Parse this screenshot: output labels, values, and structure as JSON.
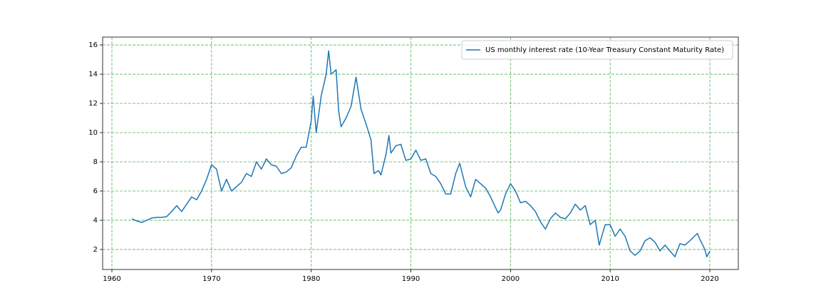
{
  "chart_data": {
    "type": "line",
    "x": [
      1962.0,
      1962.5,
      1963.0,
      1963.5,
      1964.0,
      1964.5,
      1965.0,
      1965.5,
      1966.0,
      1966.5,
      1967.0,
      1967.5,
      1968.0,
      1968.5,
      1969.0,
      1969.5,
      1970.0,
      1970.5,
      1971.0,
      1971.5,
      1972.0,
      1972.5,
      1973.0,
      1973.5,
      1974.0,
      1974.5,
      1975.0,
      1975.5,
      1976.0,
      1976.5,
      1977.0,
      1977.5,
      1978.0,
      1978.5,
      1979.0,
      1979.5,
      1980.0,
      1980.2,
      1980.5,
      1981.0,
      1981.5,
      1981.75,
      1982.0,
      1982.5,
      1982.75,
      1983.0,
      1983.5,
      1984.0,
      1984.5,
      1985.0,
      1985.5,
      1986.0,
      1986.3,
      1986.75,
      1987.0,
      1987.5,
      1987.8,
      1988.0,
      1988.5,
      1989.0,
      1989.5,
      1990.0,
      1990.5,
      1991.0,
      1991.5,
      1992.0,
      1992.5,
      1993.0,
      1993.5,
      1994.0,
      1994.5,
      1994.9,
      1995.5,
      1996.0,
      1996.5,
      1997.0,
      1997.5,
      1998.0,
      1998.75,
      1999.0,
      1999.5,
      2000.0,
      2000.5,
      2001.0,
      2001.5,
      2002.0,
      2002.5,
      2003.0,
      2003.5,
      2004.0,
      2004.5,
      2005.0,
      2005.5,
      2006.0,
      2006.5,
      2007.0,
      2007.5,
      2008.0,
      2008.5,
      2008.9,
      2009.5,
      2010.0,
      2010.5,
      2011.0,
      2011.5,
      2012.0,
      2012.5,
      2013.0,
      2013.5,
      2014.0,
      2014.5,
      2015.0,
      2015.5,
      2016.0,
      2016.5,
      2017.0,
      2017.5,
      2018.0,
      2018.75,
      2019.0,
      2019.5,
      2019.7,
      2020.0
    ],
    "series": [
      {
        "name": "US monthly interest rate (10-Year Treasury Constant Maturity Rate)",
        "color": "#1f77b4",
        "values": [
          4.1,
          3.95,
          3.85,
          4.0,
          4.15,
          4.2,
          4.2,
          4.25,
          4.6,
          5.0,
          4.6,
          5.1,
          5.6,
          5.4,
          6.0,
          6.8,
          7.8,
          7.5,
          6.0,
          6.8,
          6.0,
          6.3,
          6.6,
          7.2,
          7.0,
          8.0,
          7.5,
          8.2,
          7.8,
          7.7,
          7.2,
          7.3,
          7.6,
          8.4,
          9.0,
          9.0,
          10.8,
          12.5,
          10.0,
          12.5,
          14.0,
          15.6,
          14.0,
          14.3,
          11.5,
          10.4,
          11.0,
          11.8,
          13.8,
          11.6,
          10.6,
          9.5,
          7.2,
          7.4,
          7.1,
          8.5,
          9.8,
          8.6,
          9.1,
          9.2,
          8.1,
          8.2,
          8.8,
          8.1,
          8.2,
          7.2,
          7.0,
          6.5,
          5.8,
          5.8,
          7.2,
          7.9,
          6.3,
          5.6,
          6.8,
          6.5,
          6.2,
          5.6,
          4.5,
          4.7,
          5.8,
          6.5,
          6.0,
          5.2,
          5.3,
          5.0,
          4.6,
          3.9,
          3.4,
          4.1,
          4.5,
          4.2,
          4.1,
          4.5,
          5.1,
          4.7,
          5.0,
          3.7,
          4.0,
          2.3,
          3.7,
          3.7,
          2.9,
          3.4,
          2.9,
          1.9,
          1.6,
          1.9,
          2.6,
          2.8,
          2.5,
          1.9,
          2.3,
          1.9,
          1.5,
          2.4,
          2.3,
          2.6,
          3.1,
          2.7,
          2.0,
          1.5,
          1.9
        ]
      }
    ],
    "xlim": [
      1959.07,
      2022.86
    ],
    "xticks": [
      1960,
      1970,
      1980,
      1990,
      2000,
      2010,
      2020
    ],
    "ylim": [
      0.63,
      16.54
    ],
    "yticks": [
      2,
      4,
      6,
      8,
      10,
      12,
      14,
      16
    ],
    "grid": true,
    "grid_color": "#2ca02c",
    "legend": "upper right"
  }
}
